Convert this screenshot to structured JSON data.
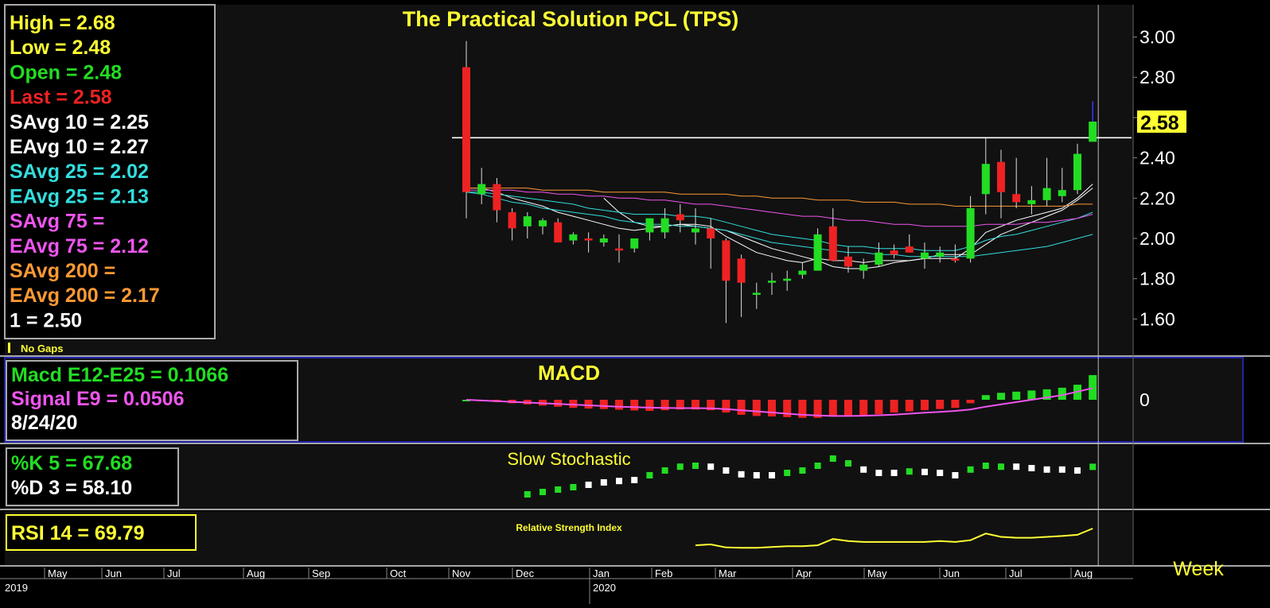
{
  "colors": {
    "bg": "#000000",
    "panel": "#111111",
    "grid": "#2a2a2a",
    "white": "#ffffff",
    "yellow": "#ffff33",
    "green": "#22dd22",
    "red": "#ee2222",
    "cyan": "#33dddd",
    "magenta": "#ee55ee",
    "orange": "#ff9933",
    "navy": "#2222aa",
    "blue": "#3333ff"
  },
  "title": "The  Practical  Solution  PCL  (TPS)",
  "price_legend": [
    {
      "text": "High   =  2.68",
      "color": "yellow"
    },
    {
      "text": "Low    =  2.48",
      "color": "yellow"
    },
    {
      "text": "Open  =  2.48",
      "color": "green"
    },
    {
      "text": "Last   =  2.58",
      "color": "red"
    },
    {
      "text": "SAvg  10  =  2.25",
      "color": "white"
    },
    {
      "text": "EAvg  10  =  2.27",
      "color": "white"
    },
    {
      "text": "SAvg  25  =  2.02",
      "color": "cyan"
    },
    {
      "text": "EAvg  25  =  2.13",
      "color": "cyan"
    },
    {
      "text": "SAvg  75  =",
      "color": "magenta"
    },
    {
      "text": "EAvg  75  =  2.12",
      "color": "magenta"
    },
    {
      "text": "SAvg  200  =",
      "color": "orange"
    },
    {
      "text": "EAvg  200  =  2.17",
      "color": "orange"
    },
    {
      "text": " 1  =  2.50",
      "color": "white"
    }
  ],
  "no_gaps": "No Gaps",
  "last_badge": "2.58",
  "macd_title": "MACD",
  "macd_legend": [
    {
      "text": "Macd  E12-E25  =  0.1066",
      "color": "green"
    },
    {
      "text": "Signal  E9  =  0.0506",
      "color": "magenta"
    },
    {
      "text": " 8/24/20",
      "color": "white"
    }
  ],
  "stoch_title": "Slow  Stochastic",
  "stoch_legend": [
    {
      "text": "%K  5  =  67.68",
      "color": "green"
    },
    {
      "text": "%D  3  =  58.10",
      "color": "white"
    }
  ],
  "rsi_title": "Relative Strength Index",
  "rsi_legend": "RSI  14  =  69.79",
  "timeframe": "Week",
  "x_axis": {
    "months": [
      "May",
      "Jun",
      "Jul",
      "Aug",
      "Sep",
      "Oct",
      "Nov",
      "Dec",
      "Jan",
      "Feb",
      "Mar",
      "Apr",
      "May",
      "Jun",
      "Jul",
      "Aug"
    ],
    "years": [
      "2019",
      "2020"
    ]
  },
  "chart_data": {
    "type": "candlestick",
    "title": "The  Practical  Solution  PCL  (TPS)",
    "y_ticks": [
      "3.00",
      "2.80",
      "2.60",
      "2.40",
      "2.20",
      "2.00",
      "1.80",
      "1.60"
    ],
    "ylim": [
      1.42,
      3.16
    ],
    "horizontal_line": 2.5,
    "candles": [
      {
        "o": 2.85,
        "h": 2.98,
        "l": 2.1,
        "c": 2.23
      },
      {
        "o": 2.22,
        "h": 2.35,
        "l": 2.17,
        "c": 2.27
      },
      {
        "o": 2.27,
        "h": 2.3,
        "l": 2.08,
        "c": 2.14
      },
      {
        "o": 2.13,
        "h": 2.15,
        "l": 1.99,
        "c": 2.05
      },
      {
        "o": 2.06,
        "h": 2.13,
        "l": 2.0,
        "c": 2.11
      },
      {
        "o": 2.06,
        "h": 2.1,
        "l": 2.02,
        "c": 2.09
      },
      {
        "o": 2.08,
        "h": 2.1,
        "l": 1.98,
        "c": 1.98
      },
      {
        "o": 1.99,
        "h": 2.03,
        "l": 1.97,
        "c": 2.02
      },
      {
        "o": 2.0,
        "h": 2.03,
        "l": 1.93,
        "c": 1.99
      },
      {
        "o": 1.98,
        "h": 2.02,
        "l": 1.96,
        "c": 2.0
      },
      {
        "o": 1.95,
        "h": 2.02,
        "l": 1.88,
        "c": 1.94
      },
      {
        "o": 1.95,
        "h": 2.0,
        "l": 1.93,
        "c": 2.0
      },
      {
        "o": 2.03,
        "h": 2.1,
        "l": 1.99,
        "c": 2.1
      },
      {
        "o": 2.03,
        "h": 2.15,
        "l": 2.0,
        "c": 2.1
      },
      {
        "o": 2.12,
        "h": 2.17,
        "l": 2.03,
        "c": 2.09
      },
      {
        "o": 2.03,
        "h": 2.15,
        "l": 1.97,
        "c": 2.05
      },
      {
        "o": 2.05,
        "h": 2.1,
        "l": 1.85,
        "c": 2.0
      },
      {
        "o": 1.99,
        "h": 2.0,
        "l": 1.58,
        "c": 1.79
      },
      {
        "o": 1.9,
        "h": 1.92,
        "l": 1.61,
        "c": 1.78
      },
      {
        "o": 1.72,
        "h": 1.78,
        "l": 1.65,
        "c": 1.73
      },
      {
        "o": 1.78,
        "h": 1.83,
        "l": 1.72,
        "c": 1.79
      },
      {
        "o": 1.79,
        "h": 1.84,
        "l": 1.74,
        "c": 1.8
      },
      {
        "o": 1.82,
        "h": 1.88,
        "l": 1.8,
        "c": 1.84
      },
      {
        "o": 1.84,
        "h": 2.05,
        "l": 1.84,
        "c": 2.02
      },
      {
        "o": 2.06,
        "h": 2.15,
        "l": 1.9,
        "c": 1.89
      },
      {
        "o": 1.91,
        "h": 1.96,
        "l": 1.83,
        "c": 1.86
      },
      {
        "o": 1.84,
        "h": 1.9,
        "l": 1.8,
        "c": 1.87
      },
      {
        "o": 1.87,
        "h": 1.98,
        "l": 1.86,
        "c": 1.93
      },
      {
        "o": 1.94,
        "h": 1.97,
        "l": 1.9,
        "c": 1.92
      },
      {
        "o": 1.96,
        "h": 2.02,
        "l": 1.93,
        "c": 1.93
      },
      {
        "o": 1.9,
        "h": 1.98,
        "l": 1.85,
        "c": 1.93
      },
      {
        "o": 1.91,
        "h": 1.96,
        "l": 1.88,
        "c": 1.93
      },
      {
        "o": 1.9,
        "h": 1.97,
        "l": 1.88,
        "c": 1.89
      },
      {
        "o": 1.9,
        "h": 2.21,
        "l": 1.88,
        "c": 2.15
      },
      {
        "o": 2.22,
        "h": 2.5,
        "l": 2.12,
        "c": 2.37
      },
      {
        "o": 2.38,
        "h": 2.44,
        "l": 2.1,
        "c": 2.23
      },
      {
        "o": 2.22,
        "h": 2.4,
        "l": 2.15,
        "c": 2.18
      },
      {
        "o": 2.17,
        "h": 2.26,
        "l": 2.12,
        "c": 2.19
      },
      {
        "o": 2.19,
        "h": 2.4,
        "l": 2.16,
        "c": 2.25
      },
      {
        "o": 2.21,
        "h": 2.35,
        "l": 2.18,
        "c": 2.24
      },
      {
        "o": 2.24,
        "h": 2.47,
        "l": 2.22,
        "c": 2.42
      },
      {
        "o": 2.48,
        "h": 2.68,
        "l": 2.48,
        "c": 2.58
      }
    ],
    "moving_averages": [
      {
        "name": "SAvg 10",
        "color": "white",
        "values": [
          null,
          null,
          null,
          null,
          null,
          null,
          null,
          null,
          null,
          2.2,
          2.13,
          2.08,
          2.06,
          2.06,
          2.07,
          2.06,
          2.05,
          2.04,
          2.01,
          1.98,
          1.95,
          1.93,
          1.91,
          1.89,
          1.86,
          1.85,
          1.85,
          1.86,
          1.88,
          1.89,
          1.9,
          1.92,
          1.92,
          1.92,
          1.97,
          2.02,
          2.05,
          2.08,
          2.11,
          2.14,
          2.19,
          2.25
        ]
      },
      {
        "name": "EAvg 10",
        "color": "white",
        "values": [
          2.25,
          2.25,
          2.23,
          2.2,
          2.18,
          2.16,
          2.13,
          2.11,
          2.09,
          2.07,
          2.05,
          2.04,
          2.05,
          2.06,
          2.07,
          2.07,
          2.06,
          2.01,
          1.97,
          1.93,
          1.91,
          1.89,
          1.88,
          1.9,
          1.89,
          1.89,
          1.88,
          1.89,
          1.89,
          1.89,
          1.9,
          1.9,
          1.9,
          1.95,
          2.03,
          2.06,
          2.09,
          2.11,
          2.13,
          2.15,
          2.2,
          2.27
        ]
      },
      {
        "name": "SAvg 25",
        "color": "cyan",
        "values": [
          2.23,
          2.22,
          2.2,
          2.18,
          2.17,
          2.15,
          2.14,
          2.13,
          2.12,
          2.11,
          2.09,
          2.08,
          2.07,
          2.07,
          2.06,
          2.06,
          2.05,
          2.04,
          2.02,
          2.0,
          1.98,
          1.97,
          1.96,
          1.95,
          1.94,
          1.93,
          1.93,
          1.92,
          1.92,
          1.91,
          1.91,
          1.91,
          1.91,
          1.91,
          1.92,
          1.93,
          1.94,
          1.95,
          1.96,
          1.98,
          2.0,
          2.02
        ]
      },
      {
        "name": "EAvg 25",
        "color": "cyan",
        "values": [
          2.23,
          2.23,
          2.22,
          2.21,
          2.2,
          2.19,
          2.18,
          2.17,
          2.15,
          2.14,
          2.13,
          2.12,
          2.12,
          2.12,
          2.11,
          2.11,
          2.1,
          2.08,
          2.06,
          2.04,
          2.02,
          2.01,
          2.0,
          1.99,
          1.97,
          1.96,
          1.96,
          1.95,
          1.95,
          1.95,
          1.94,
          1.94,
          1.94,
          1.96,
          1.99,
          2.01,
          2.02,
          2.04,
          2.06,
          2.08,
          2.1,
          2.13
        ]
      },
      {
        "name": "EAvg 75",
        "color": "magenta",
        "values": [
          2.24,
          2.24,
          2.24,
          2.24,
          2.23,
          2.23,
          2.22,
          2.22,
          2.21,
          2.21,
          2.2,
          2.2,
          2.19,
          2.19,
          2.18,
          2.17,
          2.17,
          2.16,
          2.15,
          2.14,
          2.13,
          2.12,
          2.11,
          2.11,
          2.1,
          2.09,
          2.09,
          2.08,
          2.07,
          2.07,
          2.06,
          2.06,
          2.06,
          2.06,
          2.07,
          2.07,
          2.07,
          2.08,
          2.08,
          2.09,
          2.1,
          2.12
        ]
      },
      {
        "name": "EAvg 200",
        "color": "orange",
        "values": [
          2.25,
          2.25,
          2.25,
          2.25,
          2.25,
          2.24,
          2.24,
          2.24,
          2.24,
          2.23,
          2.23,
          2.23,
          2.23,
          2.23,
          2.22,
          2.22,
          2.22,
          2.22,
          2.21,
          2.21,
          2.2,
          2.2,
          2.2,
          2.19,
          2.19,
          2.19,
          2.18,
          2.18,
          2.18,
          2.17,
          2.17,
          2.17,
          2.16,
          2.16,
          2.16,
          2.16,
          2.16,
          2.16,
          2.16,
          2.16,
          2.17,
          2.17
        ]
      }
    ],
    "macd": {
      "y_tick": "0",
      "ylim": [
        -0.2,
        0.2
      ],
      "histogram": [
        0.0,
        -0.005,
        -0.01,
        -0.015,
        -0.02,
        -0.025,
        -0.03,
        -0.035,
        -0.038,
        -0.04,
        -0.043,
        -0.046,
        -0.048,
        -0.045,
        -0.042,
        -0.042,
        -0.045,
        -0.055,
        -0.065,
        -0.07,
        -0.072,
        -0.075,
        -0.078,
        -0.078,
        -0.072,
        -0.07,
        -0.068,
        -0.062,
        -0.055,
        -0.05,
        -0.045,
        -0.04,
        -0.035,
        -0.015,
        0.02,
        0.03,
        0.035,
        0.04,
        0.045,
        0.052,
        0.065,
        0.1066
      ],
      "signal": [
        0.0,
        -0.003,
        -0.006,
        -0.009,
        -0.012,
        -0.015,
        -0.018,
        -0.021,
        -0.024,
        -0.027,
        -0.03,
        -0.032,
        -0.034,
        -0.035,
        -0.036,
        -0.036,
        -0.037,
        -0.04,
        -0.045,
        -0.05,
        -0.055,
        -0.06,
        -0.065,
        -0.068,
        -0.07,
        -0.07,
        -0.069,
        -0.067,
        -0.064,
        -0.06,
        -0.056,
        -0.052,
        -0.048,
        -0.042,
        -0.03,
        -0.02,
        -0.01,
        0.0,
        0.01,
        0.02,
        0.035,
        0.0506
      ]
    },
    "stochastic": {
      "ylim": [
        0,
        100
      ],
      "values": [
        null,
        null,
        null,
        null,
        10,
        15,
        20,
        25,
        30,
        35,
        38,
        40,
        50,
        60,
        68,
        70,
        68,
        60,
        52,
        50,
        50,
        55,
        60,
        70,
        85,
        75,
        62,
        55,
        55,
        58,
        57,
        55,
        50,
        62,
        70,
        68,
        68,
        65,
        62,
        62,
        60,
        67.68
      ],
      "d_colors": [
        "n",
        "n",
        "n",
        "n",
        "g",
        "g",
        "g",
        "g",
        "w",
        "w",
        "w",
        "w",
        "g",
        "g",
        "g",
        "g",
        "w",
        "w",
        "w",
        "w",
        "w",
        "g",
        "g",
        "g",
        "g",
        "g",
        "w",
        "w",
        "w",
        "g",
        "w",
        "w",
        "w",
        "g",
        "g",
        "g",
        "w",
        "w",
        "w",
        "w",
        "w",
        "g"
      ]
    },
    "rsi": {
      "ylim": [
        0,
        100
      ],
      "values": [
        null,
        null,
        null,
        null,
        null,
        null,
        null,
        null,
        null,
        null,
        null,
        null,
        null,
        null,
        null,
        30,
        32,
        25,
        24,
        24,
        26,
        28,
        28,
        30,
        45,
        40,
        38,
        38,
        38,
        38,
        38,
        40,
        38,
        42,
        58,
        50,
        48,
        48,
        50,
        52,
        55,
        69.79
      ]
    }
  }
}
